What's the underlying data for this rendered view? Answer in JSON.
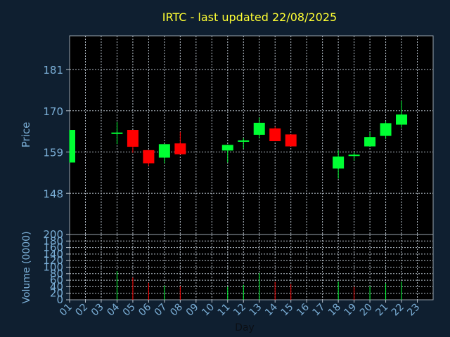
{
  "chart_data": [
    {
      "type": "candlestick",
      "title": "IRTC - last updated 22/08/2025",
      "xlabel": "",
      "ylabel": "Price",
      "ylim": [
        137,
        190
      ],
      "yticks": [
        148,
        159,
        170,
        181
      ],
      "grid": true,
      "colors": {
        "up": "#00ff33",
        "down": "#ff0000",
        "background": "#000000",
        "grid": "#b8c2cc",
        "title": "#ffff33",
        "axis_text": "#7aaed6"
      },
      "candles": [
        {
          "day": "01",
          "open": 156.2,
          "high": 164.9,
          "low": 156.2,
          "close": 164.9
        },
        {
          "day": "04",
          "open": 164.2,
          "high": 167.0,
          "low": 161.1,
          "close": 164.2
        },
        {
          "day": "05",
          "open": 164.9,
          "high": 164.9,
          "low": 158.8,
          "close": 160.4
        },
        {
          "day": "06",
          "open": 159.5,
          "high": 159.5,
          "low": 155.3,
          "close": 156.0
        },
        {
          "day": "07",
          "open": 157.5,
          "high": 161.1,
          "low": 156.0,
          "close": 161.1
        },
        {
          "day": "08",
          "open": 161.3,
          "high": 164.4,
          "low": 158.4,
          "close": 158.4
        },
        {
          "day": "11",
          "open": 159.4,
          "high": 161.0,
          "low": 156.2,
          "close": 160.9
        },
        {
          "day": "12",
          "open": 162.1,
          "high": 162.7,
          "low": 159.9,
          "close": 162.1
        },
        {
          "day": "13",
          "open": 163.6,
          "high": 168.2,
          "low": 162.6,
          "close": 166.8
        },
        {
          "day": "14",
          "open": 165.3,
          "high": 165.8,
          "low": 161.9,
          "close": 161.9
        },
        {
          "day": "15",
          "open": 163.7,
          "high": 163.7,
          "low": 160.5,
          "close": 160.5
        },
        {
          "day": "18",
          "open": 154.6,
          "high": 159.5,
          "low": 151.9,
          "close": 157.8
        },
        {
          "day": "19",
          "open": 158.3,
          "high": 158.9,
          "low": 156.7,
          "close": 158.3
        },
        {
          "day": "20",
          "open": 160.5,
          "high": 164.3,
          "low": 160.5,
          "close": 163.0
        },
        {
          "day": "21",
          "open": 163.3,
          "high": 167.2,
          "low": 162.5,
          "close": 166.7
        },
        {
          "day": "22",
          "open": 166.3,
          "high": 172.6,
          "low": 165.5,
          "close": 169.0
        }
      ]
    },
    {
      "type": "bar",
      "title": "",
      "xlabel": "Day",
      "ylabel": "Volume (0000)",
      "ylim": [
        0,
        200
      ],
      "yticks": [
        0,
        20,
        40,
        60,
        80,
        100,
        120,
        140,
        160,
        180,
        200
      ],
      "categories": [
        "01",
        "02",
        "03",
        "04",
        "05",
        "06",
        "07",
        "08",
        "09",
        "10",
        "11",
        "12",
        "13",
        "14",
        "15",
        "16",
        "17",
        "18",
        "19",
        "20",
        "21",
        "22",
        "23"
      ],
      "volumes": [
        {
          "day": "04",
          "value": 88,
          "direction": "up"
        },
        {
          "day": "05",
          "value": 68,
          "direction": "down"
        },
        {
          "day": "06",
          "value": 52,
          "direction": "down"
        },
        {
          "day": "07",
          "value": 44,
          "direction": "up"
        },
        {
          "day": "08",
          "value": 42,
          "direction": "down"
        },
        {
          "day": "11",
          "value": 40,
          "direction": "up"
        },
        {
          "day": "12",
          "value": 46,
          "direction": "up"
        },
        {
          "day": "13",
          "value": 82,
          "direction": "up"
        },
        {
          "day": "14",
          "value": 55,
          "direction": "down"
        },
        {
          "day": "15",
          "value": 48,
          "direction": "down"
        },
        {
          "day": "18",
          "value": 56,
          "direction": "up"
        },
        {
          "day": "19",
          "value": 40,
          "direction": "down"
        },
        {
          "day": "20",
          "value": 42,
          "direction": "up"
        },
        {
          "day": "21",
          "value": 50,
          "direction": "up"
        },
        {
          "day": "22",
          "value": 56,
          "direction": "up"
        }
      ]
    }
  ]
}
